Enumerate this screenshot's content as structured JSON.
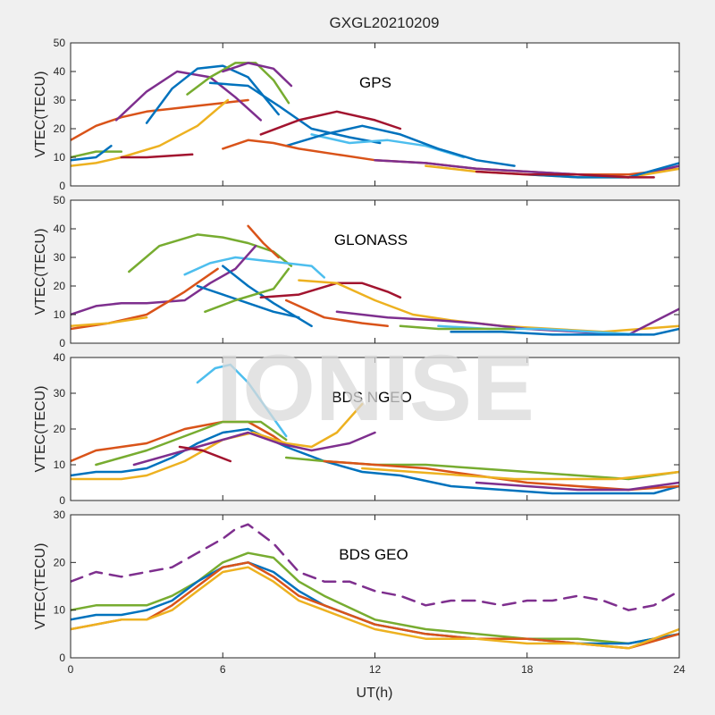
{
  "figure": {
    "title": "GXGL20210209",
    "xlabel": "UT(h)",
    "watermark": "IONISE",
    "background": "#f0f0f0",
    "watermark_color": "#d9d9d9"
  },
  "chart_data": [
    {
      "type": "line",
      "panel_label": "GPS",
      "ylabel": "VTEC(TECU)",
      "xlim": [
        0,
        24
      ],
      "ylim": [
        0,
        50
      ],
      "xticks": [
        0,
        6,
        12,
        18,
        24
      ],
      "yticks": [
        0,
        10,
        20,
        30,
        40,
        50
      ],
      "grid": false,
      "series": [
        {
          "color": "#d95319",
          "x": [
            0,
            1,
            2,
            3,
            4,
            5,
            6,
            7
          ],
          "y": [
            16,
            21,
            24,
            26,
            27,
            28,
            29,
            30
          ]
        },
        {
          "color": "#7e2f8e",
          "x": [
            1.8,
            3,
            4.2,
            5.5,
            6.5,
            7.5
          ],
          "y": [
            23,
            33,
            40,
            38,
            31,
            23
          ]
        },
        {
          "color": "#0072bd",
          "x": [
            3,
            4,
            5,
            6,
            7,
            8.2
          ],
          "y": [
            22,
            34,
            41,
            42,
            38,
            25
          ]
        },
        {
          "color": "#77ac30",
          "x": [
            4.6,
            5.5,
            6.5,
            7.3,
            8,
            8.6
          ],
          "y": [
            32,
            38,
            43,
            43,
            37,
            29
          ]
        },
        {
          "color": "#7e2f8e",
          "x": [
            6,
            7,
            8,
            8.7
          ],
          "y": [
            40,
            43,
            41,
            35
          ]
        },
        {
          "color": "#0072bd",
          "x": [
            5.5,
            7,
            8.2,
            9.5,
            11,
            12.2
          ],
          "y": [
            36,
            35,
            28,
            20,
            17,
            15
          ]
        },
        {
          "color": "#edb120",
          "x": [
            0,
            1,
            2,
            3.5,
            5,
            6.2
          ],
          "y": [
            7,
            8,
            10,
            14,
            21,
            30
          ]
        },
        {
          "color": "#a2142f",
          "x": [
            7.5,
            9,
            10.5,
            12,
            13
          ],
          "y": [
            18,
            23,
            26,
            23,
            20
          ]
        },
        {
          "color": "#4dbeee",
          "x": [
            9.5,
            11,
            12.5,
            14,
            15.5
          ],
          "y": [
            18,
            15,
            16,
            14,
            10
          ]
        },
        {
          "color": "#0072bd",
          "x": [
            8.5,
            10,
            11.5,
            13,
            14.5,
            16,
            17.5
          ],
          "y": [
            14,
            18,
            21,
            18,
            13,
            9,
            7
          ]
        },
        {
          "color": "#d95319",
          "x": [
            6,
            7,
            8,
            9,
            10.5,
            12,
            14,
            16,
            18,
            20,
            22,
            24
          ],
          "y": [
            13,
            16,
            15,
            13,
            11,
            9,
            8,
            6,
            5,
            4,
            4,
            6
          ]
        },
        {
          "color": "#77ac30",
          "x": [
            0,
            1,
            2
          ],
          "y": [
            10,
            12,
            12
          ]
        },
        {
          "color": "#0072bd",
          "x": [
            0,
            1,
            1.6
          ],
          "y": [
            9,
            10,
            14
          ]
        },
        {
          "color": "#a2142f",
          "x": [
            2,
            3,
            4.8
          ],
          "y": [
            10,
            10,
            11
          ]
        },
        {
          "color": "#7e2f8e",
          "x": [
            12,
            14,
            16,
            18,
            20,
            22,
            24
          ],
          "y": [
            9,
            8,
            6,
            5,
            4,
            3,
            7
          ]
        },
        {
          "color": "#edb120",
          "x": [
            14,
            16,
            18,
            20,
            22,
            24
          ],
          "y": [
            7,
            5,
            4,
            3,
            3,
            6
          ]
        },
        {
          "color": "#0072bd",
          "x": [
            18,
            20,
            22,
            24
          ],
          "y": [
            4,
            3,
            3,
            8
          ]
        },
        {
          "color": "#a2142f",
          "x": [
            16,
            18,
            20,
            22,
            23
          ],
          "y": [
            5,
            4,
            4,
            3,
            3
          ]
        }
      ]
    },
    {
      "type": "line",
      "panel_label": "GLONASS",
      "ylabel": "VTEC(TECU)",
      "xlim": [
        0,
        24
      ],
      "ylim": [
        0,
        50
      ],
      "xticks": [
        0,
        6,
        12,
        18,
        24
      ],
      "yticks": [
        0,
        10,
        20,
        30,
        40,
        50
      ],
      "grid": false,
      "series": [
        {
          "color": "#77ac30",
          "x": [
            2.3,
            3.5,
            5,
            6,
            7,
            8,
            8.7
          ],
          "y": [
            25,
            34,
            38,
            37,
            35,
            32,
            27
          ]
        },
        {
          "color": "#4dbeee",
          "x": [
            4.5,
            5.5,
            6.5,
            7.5,
            8.5,
            9.5,
            10
          ],
          "y": [
            24,
            28,
            30,
            29,
            28,
            27,
            23
          ]
        },
        {
          "color": "#7e2f8e",
          "x": [
            0,
            1,
            2,
            3,
            4.5,
            5.5,
            6.5,
            7.3
          ],
          "y": [
            10,
            13,
            14,
            14,
            15,
            21,
            26,
            34
          ]
        },
        {
          "color": "#d95319",
          "x": [
            7,
            7.6,
            8.2
          ],
          "y": [
            41,
            35,
            30
          ]
        },
        {
          "color": "#0072bd",
          "x": [
            5,
            6,
            7,
            8,
            9
          ],
          "y": [
            20,
            17,
            14,
            11,
            9
          ]
        },
        {
          "color": "#0072bd",
          "x": [
            6,
            7,
            8,
            9.5
          ],
          "y": [
            27,
            20,
            14,
            6
          ]
        },
        {
          "color": "#a2142f",
          "x": [
            7.5,
            9,
            10.5,
            11.5,
            12.5,
            13
          ],
          "y": [
            16,
            17,
            21,
            21,
            18,
            16
          ]
        },
        {
          "color": "#d95319",
          "x": [
            0,
            1.5,
            3,
            4.5,
            5.8
          ],
          "y": [
            5,
            7,
            10,
            18,
            26
          ]
        },
        {
          "color": "#edb120",
          "x": [
            0,
            1.5,
            3
          ],
          "y": [
            6,
            7,
            9
          ]
        },
        {
          "color": "#77ac30",
          "x": [
            5.3,
            6.5,
            8,
            8.6
          ],
          "y": [
            11,
            15,
            19,
            26
          ]
        },
        {
          "color": "#d95319",
          "x": [
            8.5,
            10,
            11.5,
            12.5
          ],
          "y": [
            15,
            9,
            7,
            6
          ]
        },
        {
          "color": "#edb120",
          "x": [
            9,
            10.5,
            12,
            13.5,
            15,
            17,
            19,
            21,
            24
          ],
          "y": [
            22,
            21,
            15,
            10,
            8,
            6,
            5,
            4,
            6
          ]
        },
        {
          "color": "#7e2f8e",
          "x": [
            10.5,
            12.5,
            14.5,
            16,
            18,
            20,
            22,
            24
          ],
          "y": [
            11,
            9,
            8,
            7,
            5,
            4,
            3,
            12
          ]
        },
        {
          "color": "#4dbeee",
          "x": [
            14.5,
            16.5,
            18.5,
            20.5,
            22.5
          ],
          "y": [
            6,
            5,
            5,
            4,
            3
          ]
        },
        {
          "color": "#0072bd",
          "x": [
            15,
            17,
            19,
            21,
            23,
            24
          ],
          "y": [
            4,
            4,
            3,
            3,
            3,
            5
          ]
        },
        {
          "color": "#77ac30",
          "x": [
            13,
            14.5,
            16,
            17.5
          ],
          "y": [
            6,
            5,
            5,
            5
          ]
        }
      ]
    },
    {
      "type": "line",
      "panel_label": "BDS NGEO",
      "ylabel": "VTEC(TECU)",
      "xlim": [
        0,
        24
      ],
      "ylim": [
        0,
        40
      ],
      "xticks": [
        0,
        6,
        12,
        18,
        24
      ],
      "yticks": [
        0,
        10,
        20,
        30,
        40
      ],
      "grid": false,
      "series": [
        {
          "color": "#4dbeee",
          "x": [
            5,
            5.7,
            6.3,
            7,
            7.8,
            8.5
          ],
          "y": [
            33,
            37,
            38,
            33,
            25,
            18
          ]
        },
        {
          "color": "#d95319",
          "x": [
            0,
            1,
            2,
            3,
            4.5,
            6,
            7,
            8,
            8.6
          ],
          "y": [
            11,
            14,
            15,
            16,
            20,
            22,
            22,
            18,
            15
          ]
        },
        {
          "color": "#77ac30",
          "x": [
            1,
            2,
            3,
            4.5,
            6,
            7.5,
            8.5
          ],
          "y": [
            10,
            12,
            14,
            18,
            22,
            22,
            17
          ]
        },
        {
          "color": "#0072bd",
          "x": [
            0,
            1,
            2,
            3,
            4,
            5,
            6,
            7,
            8.5,
            10,
            11.5,
            13,
            15,
            17,
            19,
            21,
            23,
            24
          ],
          "y": [
            7,
            8,
            8,
            9,
            12,
            16,
            19,
            20,
            15,
            11,
            8,
            7,
            4,
            3,
            2,
            2,
            2,
            4
          ]
        },
        {
          "color": "#edb120",
          "x": [
            0,
            1,
            2,
            3,
            4.5,
            6,
            7.2,
            8.5,
            9.5,
            10.5,
            11.5
          ],
          "y": [
            6,
            6,
            6,
            7,
            11,
            17,
            19,
            16,
            15,
            19,
            27
          ]
        },
        {
          "color": "#7e2f8e",
          "x": [
            2.5,
            4.5,
            6,
            7,
            8.2,
            9.5,
            11,
            12
          ],
          "y": [
            10,
            14,
            17,
            19,
            16,
            14,
            16,
            19
          ]
        },
        {
          "color": "#a2142f",
          "x": [
            4.3,
            5.2,
            6.3
          ],
          "y": [
            15,
            14,
            11
          ]
        },
        {
          "color": "#77ac30",
          "x": [
            8.5,
            10,
            12,
            14,
            16,
            18,
            20,
            22,
            24
          ],
          "y": [
            12,
            11,
            10,
            10,
            9,
            8,
            7,
            6,
            8
          ]
        },
        {
          "color": "#d95319",
          "x": [
            10,
            12,
            14,
            16,
            18,
            20,
            22,
            24
          ],
          "y": [
            11,
            10,
            9,
            7,
            5,
            4,
            3,
            4
          ]
        },
        {
          "color": "#edb120",
          "x": [
            11.5,
            13.5,
            15.5,
            17.5,
            19.5,
            21.5,
            24
          ],
          "y": [
            9,
            8,
            7,
            6,
            6,
            6,
            8
          ]
        },
        {
          "color": "#7e2f8e",
          "x": [
            16,
            18,
            20,
            22,
            24
          ],
          "y": [
            5,
            4,
            3,
            3,
            5
          ]
        }
      ]
    },
    {
      "type": "line",
      "panel_label": "BDS GEO",
      "ylabel": "VTEC(TECU)",
      "xlim": [
        0,
        24
      ],
      "ylim": [
        0,
        30
      ],
      "xticks": [
        0,
        6,
        12,
        18,
        24
      ],
      "yticks": [
        0,
        10,
        20,
        30
      ],
      "grid": false,
      "series": [
        {
          "color": "#7e2f8e",
          "dashed": true,
          "x": [
            0,
            1,
            2,
            3,
            4,
            5,
            6,
            6.5,
            7,
            8,
            9,
            10,
            11,
            12,
            13,
            14,
            15,
            16,
            17,
            18,
            19,
            20,
            21,
            22,
            23,
            24
          ],
          "y": [
            16,
            18,
            17,
            18,
            19,
            22,
            25,
            27,
            28,
            24,
            18,
            16,
            16,
            14,
            13,
            11,
            12,
            12,
            11,
            12,
            12,
            13,
            12,
            10,
            11,
            14
          ]
        },
        {
          "color": "#77ac30",
          "x": [
            0,
            1,
            2,
            3,
            4,
            5,
            6,
            7,
            8,
            9,
            10,
            12,
            14,
            16,
            18,
            20,
            22,
            24
          ],
          "y": [
            10,
            11,
            11,
            11,
            13,
            16,
            20,
            22,
            21,
            16,
            13,
            8,
            6,
            5,
            4,
            4,
            3,
            5
          ]
        },
        {
          "color": "#0072bd",
          "x": [
            0,
            1,
            2,
            3,
            4,
            5,
            6,
            7,
            8,
            9,
            10,
            12,
            14,
            16,
            18,
            20,
            22,
            24
          ],
          "y": [
            8,
            9,
            9,
            10,
            12,
            16,
            19,
            20,
            18,
            14,
            11,
            7,
            5,
            4,
            4,
            3,
            3,
            5
          ]
        },
        {
          "color": "#d95319",
          "x": [
            0,
            1,
            2,
            3,
            4,
            5,
            6,
            7,
            8,
            9,
            10,
            12,
            14,
            16,
            18,
            20,
            22,
            24
          ],
          "y": [
            6,
            7,
            8,
            8,
            11,
            15,
            19,
            20,
            17,
            13,
            11,
            7,
            5,
            4,
            4,
            3,
            2,
            5
          ]
        },
        {
          "color": "#edb120",
          "x": [
            0,
            1,
            2,
            3,
            4,
            5,
            6,
            7,
            8,
            9,
            10,
            12,
            14,
            16,
            18,
            20,
            22,
            24
          ],
          "y": [
            6,
            7,
            8,
            8,
            10,
            14,
            18,
            19,
            16,
            12,
            10,
            6,
            4,
            4,
            3,
            3,
            2,
            6
          ]
        }
      ]
    }
  ]
}
